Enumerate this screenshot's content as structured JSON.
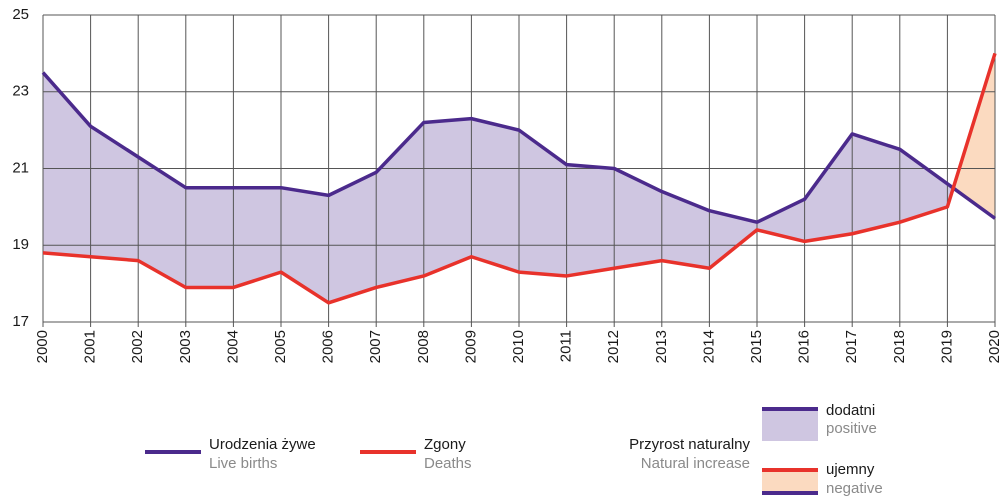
{
  "chart_data": {
    "type": "line",
    "categories": [
      "2000",
      "2001",
      "2002",
      "2003",
      "2004",
      "2005",
      "2006",
      "2007",
      "2008",
      "2009",
      "2010",
      "2011",
      "2012",
      "2013",
      "2014",
      "2015",
      "2016",
      "2017",
      "2018",
      "2019",
      "2020"
    ],
    "series": [
      {
        "name": "Urodzenia żywe",
        "name_en": "Live births",
        "color": "#4b2a8c",
        "values": [
          23.5,
          22.1,
          21.3,
          20.5,
          20.5,
          20.5,
          20.3,
          20.9,
          22.2,
          22.3,
          22.0,
          21.1,
          21.0,
          20.4,
          19.9,
          19.6,
          20.2,
          21.9,
          21.5,
          20.6,
          19.7
        ]
      },
      {
        "name": "Zgony",
        "name_en": "Deaths",
        "color": "#e8322b",
        "values": [
          18.8,
          18.7,
          18.6,
          17.9,
          17.9,
          18.3,
          17.5,
          17.9,
          18.2,
          18.7,
          18.3,
          18.2,
          18.4,
          18.6,
          18.4,
          19.4,
          19.1,
          19.3,
          19.6,
          20.0,
          24.0
        ]
      }
    ],
    "natural_increase": {
      "title": "Przyrost naturalny",
      "title_en": "Natural increase",
      "positive": {
        "label": "dodatni",
        "label_en": "positive",
        "color": "#cfc6e1"
      },
      "negative": {
        "label": "ujemny",
        "label_en": "negative",
        "color": "#fbdac0"
      }
    },
    "ylim": [
      17,
      25
    ],
    "yticks": [
      17,
      19,
      21,
      23,
      25
    ],
    "grid": true
  }
}
